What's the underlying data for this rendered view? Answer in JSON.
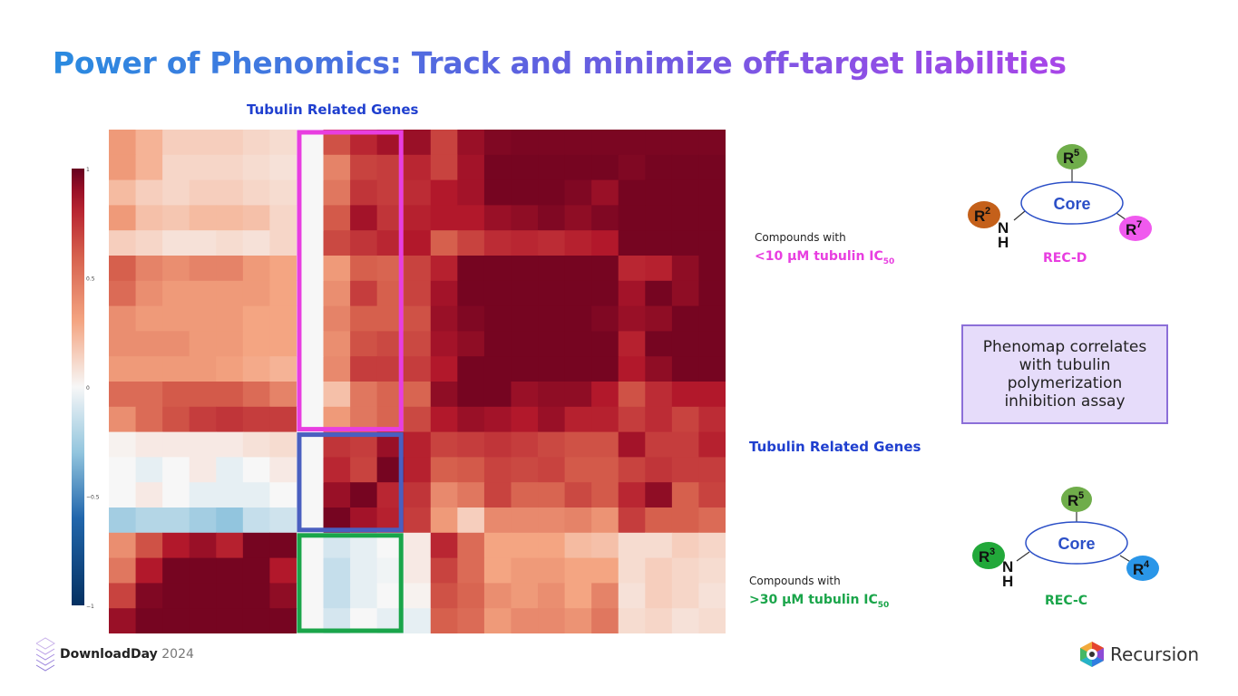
{
  "slide": {
    "title": "Power of Phenomics: Track and minimize off-target liabilities",
    "top_label": "Tubulin Related Genes",
    "mid_label": "Tubulin Related Genes"
  },
  "colors": {
    "title_gradient": [
      "#2a8be0",
      "#5b63e0",
      "#a845e8"
    ],
    "label_blue": "#1f3fcf",
    "magenta": "#e83ee0",
    "green": "#1aa54a",
    "box_blue": "#4a5fc0",
    "callout_border": "#8c6fd8",
    "callout_fill": "#e6dcfa"
  },
  "heatmap": {
    "rows": 20,
    "cols": 23,
    "colorbar_ticks": [
      "1",
      "0.5",
      "0",
      "−0.5",
      "−1"
    ],
    "matrix": [
      [
        0.35,
        0.25,
        0.15,
        0.15,
        0.15,
        0.12,
        0.1,
        0.0,
        0.65,
        0.8,
        0.88,
        0.9,
        0.7,
        0.9,
        0.95,
        0.96,
        0.96,
        0.96,
        0.96,
        0.96,
        0.96,
        0.96,
        0.96
      ],
      [
        0.35,
        0.25,
        0.12,
        0.12,
        0.12,
        0.1,
        0.08,
        0.0,
        0.45,
        0.7,
        0.72,
        0.8,
        0.7,
        0.88,
        0.97,
        0.97,
        0.97,
        0.97,
        0.97,
        0.95,
        0.97,
        0.97,
        0.97
      ],
      [
        0.22,
        0.15,
        0.12,
        0.15,
        0.15,
        0.12,
        0.1,
        0.0,
        0.5,
        0.75,
        0.72,
        0.78,
        0.85,
        0.88,
        0.97,
        0.97,
        0.97,
        0.95,
        0.9,
        0.97,
        0.97,
        0.97,
        0.97
      ],
      [
        0.35,
        0.2,
        0.18,
        0.22,
        0.22,
        0.2,
        0.12,
        0.0,
        0.62,
        0.88,
        0.75,
        0.82,
        0.85,
        0.85,
        0.9,
        0.92,
        0.95,
        0.92,
        0.95,
        0.97,
        0.97,
        0.97,
        0.97
      ],
      [
        0.15,
        0.12,
        0.08,
        0.08,
        0.1,
        0.08,
        0.12,
        0.0,
        0.68,
        0.75,
        0.8,
        0.85,
        0.6,
        0.7,
        0.78,
        0.8,
        0.78,
        0.82,
        0.85,
        0.97,
        0.97,
        0.97,
        0.97
      ],
      [
        0.6,
        0.45,
        0.4,
        0.45,
        0.45,
        0.35,
        0.3,
        0.0,
        0.35,
        0.6,
        0.58,
        0.7,
        0.82,
        0.97,
        0.97,
        0.97,
        0.97,
        0.97,
        0.97,
        0.8,
        0.82,
        0.92,
        0.97
      ],
      [
        0.55,
        0.4,
        0.35,
        0.35,
        0.35,
        0.35,
        0.3,
        0.0,
        0.4,
        0.72,
        0.6,
        0.7,
        0.88,
        0.97,
        0.97,
        0.97,
        0.97,
        0.97,
        0.97,
        0.88,
        0.97,
        0.92,
        0.97
      ],
      [
        0.4,
        0.35,
        0.35,
        0.35,
        0.35,
        0.3,
        0.3,
        0.0,
        0.45,
        0.6,
        0.6,
        0.65,
        0.9,
        0.95,
        0.97,
        0.97,
        0.97,
        0.97,
        0.95,
        0.9,
        0.92,
        0.97,
        0.97
      ],
      [
        0.4,
        0.4,
        0.4,
        0.35,
        0.35,
        0.3,
        0.3,
        0.0,
        0.4,
        0.65,
        0.68,
        0.68,
        0.88,
        0.92,
        0.97,
        0.97,
        0.97,
        0.97,
        0.97,
        0.82,
        0.97,
        0.97,
        0.97
      ],
      [
        0.35,
        0.35,
        0.35,
        0.35,
        0.32,
        0.28,
        0.25,
        0.0,
        0.42,
        0.72,
        0.72,
        0.72,
        0.85,
        0.97,
        0.97,
        0.97,
        0.97,
        0.97,
        0.97,
        0.85,
        0.92,
        0.97,
        0.97
      ],
      [
        0.55,
        0.55,
        0.62,
        0.62,
        0.62,
        0.55,
        0.45,
        0.0,
        0.2,
        0.5,
        0.58,
        0.58,
        0.92,
        0.97,
        0.97,
        0.9,
        0.92,
        0.92,
        0.85,
        0.65,
        0.78,
        0.85,
        0.85
      ],
      [
        0.4,
        0.55,
        0.65,
        0.72,
        0.75,
        0.72,
        0.72,
        0.0,
        0.35,
        0.5,
        0.58,
        0.68,
        0.85,
        0.9,
        0.88,
        0.85,
        0.9,
        0.82,
        0.82,
        0.72,
        0.78,
        0.7,
        0.78
      ],
      [
        0.02,
        0.05,
        0.05,
        0.05,
        0.05,
        0.08,
        0.1,
        0.0,
        0.75,
        0.72,
        0.9,
        0.82,
        0.7,
        0.72,
        0.75,
        0.72,
        0.68,
        0.65,
        0.65,
        0.88,
        0.72,
        0.72,
        0.82
      ],
      [
        0.0,
        -0.05,
        0.0,
        0.05,
        -0.05,
        0.0,
        0.05,
        0.0,
        0.8,
        0.7,
        0.97,
        0.82,
        0.6,
        0.62,
        0.7,
        0.68,
        0.7,
        0.62,
        0.62,
        0.7,
        0.75,
        0.72,
        0.72
      ],
      [
        0.0,
        0.05,
        0.0,
        -0.05,
        -0.05,
        -0.05,
        0.0,
        0.0,
        0.9,
        0.97,
        0.8,
        0.75,
        0.42,
        0.5,
        0.7,
        0.58,
        0.58,
        0.68,
        0.62,
        0.8,
        0.92,
        0.6,
        0.7
      ],
      [
        -0.25,
        -0.2,
        -0.2,
        -0.25,
        -0.3,
        -0.15,
        -0.12,
        0.0,
        0.97,
        0.88,
        0.82,
        0.72,
        0.35,
        0.15,
        0.42,
        0.42,
        0.42,
        0.45,
        0.38,
        0.72,
        0.6,
        0.6,
        0.55
      ],
      [
        0.4,
        0.65,
        0.85,
        0.9,
        0.82,
        0.97,
        0.97,
        0.0,
        -0.1,
        -0.05,
        0.0,
        0.05,
        0.8,
        0.55,
        0.3,
        0.3,
        0.3,
        0.22,
        0.2,
        0.1,
        0.1,
        0.15,
        0.12
      ],
      [
        0.5,
        0.85,
        0.97,
        0.97,
        0.97,
        0.97,
        0.85,
        0.0,
        -0.15,
        -0.05,
        -0.02,
        0.05,
        0.7,
        0.55,
        0.3,
        0.35,
        0.35,
        0.3,
        0.3,
        0.1,
        0.15,
        0.12,
        0.1
      ],
      [
        0.7,
        0.95,
        0.97,
        0.97,
        0.97,
        0.97,
        0.92,
        0.0,
        -0.15,
        -0.05,
        0.0,
        0.02,
        0.65,
        0.58,
        0.4,
        0.35,
        0.4,
        0.3,
        0.45,
        0.08,
        0.15,
        0.12,
        0.08
      ],
      [
        0.9,
        0.97,
        0.97,
        0.97,
        0.97,
        0.97,
        0.97,
        0.0,
        -0.1,
        0.0,
        -0.05,
        -0.05,
        0.6,
        0.55,
        0.35,
        0.42,
        0.42,
        0.38,
        0.5,
        0.1,
        0.12,
        0.08,
        0.1
      ]
    ]
  },
  "compounds_top": {
    "note": "Compounds with",
    "ic_prefix": "<10 µM tubulin IC",
    "ic_sub": "50"
  },
  "compounds_bottom": {
    "note": "Compounds with",
    "ic_prefix": ">30 µM tubulin IC",
    "ic_sub": "50"
  },
  "molecule_top": {
    "core": "Core",
    "r_left": "R",
    "r_left_sup": "2",
    "r_top": "R",
    "r_top_sup": "5",
    "r_right": "R",
    "r_right_sup": "7",
    "n": "N",
    "h": "H",
    "label": "REC-D"
  },
  "molecule_bottom": {
    "core": "Core",
    "r_left": "R",
    "r_left_sup": "3",
    "r_top": "R",
    "r_top_sup": "5",
    "r_right": "R",
    "r_right_sup": "4",
    "n": "N",
    "h": "H",
    "label": "REC-C"
  },
  "callout": {
    "text": "Phenomap correlates with tubulin polymerization inhibition assay"
  },
  "footer": {
    "download_bold": "DownloadDay",
    "download_year": "2024",
    "recursion": "Recursion"
  }
}
